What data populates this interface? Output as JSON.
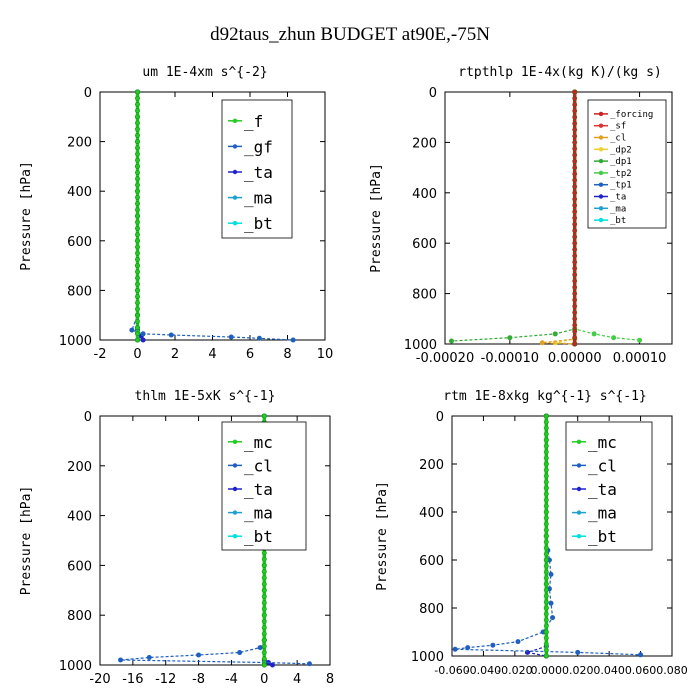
{
  "suptitle": "d92taus_zhun  BUDGET at90E,-75N",
  "chart_data": [
    {
      "type": "line",
      "title": "um  1E-4xm s^{-2}",
      "ylabel": "Pressure [hPa]",
      "xlim": [
        -2,
        10
      ],
      "ylim": [
        1000,
        0
      ],
      "xticks": [
        "-2",
        "0",
        "2",
        "4",
        "6",
        "8",
        "10"
      ],
      "yticks": [
        "0",
        "200",
        "400",
        "600",
        "800",
        "1000"
      ],
      "legend_position": "top-right",
      "series": [
        {
          "name": "_f",
          "color": "#22cc22",
          "points": [
            [
              0,
              0
            ],
            [
              0,
              100
            ],
            [
              0,
              200
            ],
            [
              0,
              300
            ],
            [
              0,
              400
            ],
            [
              0,
              500
            ],
            [
              0,
              600
            ],
            [
              0,
              700
            ],
            [
              0,
              800
            ],
            [
              0,
              900
            ],
            [
              0,
              950
            ],
            [
              0,
              970
            ],
            [
              0,
              1000
            ]
          ]
        },
        {
          "name": "_gf",
          "color": "#1f5fbf",
          "points": [
            [
              0,
              0
            ],
            [
              0,
              500
            ],
            [
              0,
              900
            ],
            [
              -0.3,
              960
            ],
            [
              0.3,
              975
            ],
            [
              1.8,
              980
            ],
            [
              5,
              988
            ],
            [
              6.5,
              993
            ],
            [
              8.3,
              1000
            ]
          ]
        },
        {
          "name": "_ta",
          "color": "#2222cc",
          "points": [
            [
              0,
              0
            ],
            [
              0,
              900
            ],
            [
              0,
              960
            ],
            [
              0.2,
              985
            ],
            [
              0.3,
              1000
            ]
          ]
        },
        {
          "name": "_ma",
          "color": "#1ea0d0",
          "points": [
            [
              0,
              0
            ],
            [
              0,
              1000
            ]
          ]
        },
        {
          "name": "_bt",
          "color": "#00e0e0",
          "points": [
            [
              0,
              0
            ],
            [
              0,
              1000
            ]
          ]
        }
      ]
    },
    {
      "type": "line",
      "title": "rtpthlp  1E-4x(kg K)/(kg s)",
      "ylabel": "Pressure [hPa]",
      "xlim": [
        -0.0002,
        0.00015
      ],
      "ylim": [
        1000,
        0
      ],
      "xticks": [
        "-0.00020",
        "-0.00010",
        "0.00000",
        "0.00010"
      ],
      "yticks": [
        "0",
        "200",
        "400",
        "600",
        "800",
        "1000"
      ],
      "legend_position": "top-right",
      "series": [
        {
          "name": "_forcing",
          "color": "#cc2222",
          "points": [
            [
              0,
              0
            ],
            [
              0,
              1000
            ]
          ]
        },
        {
          "name": "_sf",
          "color": "#dd3333",
          "points": [
            [
              0,
              0
            ],
            [
              0,
              1000
            ]
          ]
        },
        {
          "name": "_cl",
          "color": "#e0a020",
          "points": [
            [
              0,
              0
            ],
            [
              0,
              980
            ],
            [
              -5e-05,
              995
            ],
            [
              0,
              1000
            ]
          ]
        },
        {
          "name": "_dp2",
          "color": "#f0d030",
          "points": [
            [
              0,
              0
            ],
            [
              0,
              980
            ],
            [
              -3e-05,
              995
            ],
            [
              0,
              1000
            ]
          ]
        },
        {
          "name": "_dp1",
          "color": "#33aa33",
          "points": [
            [
              0,
              0
            ],
            [
              0,
              940
            ],
            [
              -3e-05,
              960
            ],
            [
              -0.0001,
              975
            ],
            [
              -0.00019,
              988
            ]
          ]
        },
        {
          "name": "_tp2",
          "color": "#44cc44",
          "points": [
            [
              0,
              0
            ],
            [
              0,
              940
            ],
            [
              3e-05,
              960
            ],
            [
              6e-05,
              975
            ],
            [
              0.0001,
              985
            ]
          ]
        },
        {
          "name": "_tp1",
          "color": "#1f5fbf",
          "points": [
            [
              0,
              0
            ],
            [
              0,
              1000
            ]
          ]
        },
        {
          "name": "_ta",
          "color": "#2222cc",
          "points": [
            [
              0,
              0
            ],
            [
              0,
              1000
            ]
          ]
        },
        {
          "name": "_ma",
          "color": "#1ea0d0",
          "points": [
            [
              0,
              0
            ],
            [
              0,
              1000
            ]
          ]
        },
        {
          "name": "_bt",
          "color": "#00e0e0",
          "points": [
            [
              0,
              0
            ],
            [
              0,
              1000
            ]
          ]
        }
      ]
    },
    {
      "type": "line",
      "title": "thlm  1E-5xK s^{-1}",
      "ylabel": "Pressure [hPa]",
      "xlim": [
        -20,
        8
      ],
      "ylim": [
        1000,
        0
      ],
      "xticks": [
        "-20",
        "-16",
        "-12",
        "-8",
        "-4",
        "0",
        "4",
        "8"
      ],
      "yticks": [
        "0",
        "200",
        "400",
        "600",
        "800",
        "1000"
      ],
      "legend_position": "top-right",
      "series": [
        {
          "name": "_mc",
          "color": "#22cc22",
          "points": [
            [
              0,
              0
            ],
            [
              0,
              100
            ],
            [
              0,
              200
            ],
            [
              0,
              300
            ],
            [
              0,
              400
            ],
            [
              0,
              500
            ],
            [
              0,
              600
            ],
            [
              0,
              700
            ],
            [
              0,
              800
            ],
            [
              0,
              900
            ],
            [
              0,
              1000
            ]
          ]
        },
        {
          "name": "_cl",
          "color": "#1f5fbf",
          "points": [
            [
              0,
              0
            ],
            [
              0,
              900
            ],
            [
              -0.5,
              930
            ],
            [
              -3,
              950
            ],
            [
              -8,
              960
            ],
            [
              -14,
              970
            ],
            [
              -17.5,
              980
            ],
            [
              0,
              990
            ],
            [
              5.5,
              995
            ]
          ]
        },
        {
          "name": "_ta",
          "color": "#2222cc",
          "points": [
            [
              0,
              0
            ],
            [
              0,
              980
            ],
            [
              0.5,
              990
            ],
            [
              1,
              1000
            ]
          ]
        },
        {
          "name": "_ma",
          "color": "#1ea0d0",
          "points": [
            [
              0,
              0
            ],
            [
              0,
              1000
            ]
          ]
        },
        {
          "name": "_bt",
          "color": "#00e0e0",
          "points": [
            [
              0,
              0
            ],
            [
              0,
              1000
            ]
          ]
        }
      ]
    },
    {
      "type": "line",
      "title": "rtm  1E-8xkg kg^{-1} s^{-1}",
      "ylabel": "Pressure [hPa]",
      "xlim": [
        -0.06,
        0.08
      ],
      "ylim": [
        1000,
        0
      ],
      "xticks": [
        "-0.060",
        "-0.040",
        "-0.020",
        "0.000",
        "0.020",
        "0.040",
        "0.060",
        "0.080"
      ],
      "yticks": [
        "0",
        "200",
        "400",
        "600",
        "800",
        "1000"
      ],
      "legend_position": "top-right",
      "series": [
        {
          "name": "_mc",
          "color": "#22cc22",
          "points": [
            [
              0,
              0
            ],
            [
              0,
              100
            ],
            [
              0,
              200
            ],
            [
              0,
              300
            ],
            [
              0,
              400
            ],
            [
              0,
              500
            ],
            [
              0,
              600
            ],
            [
              0,
              700
            ],
            [
              0,
              800
            ],
            [
              0,
              900
            ],
            [
              0,
              1000
            ]
          ]
        },
        {
          "name": "_cl",
          "color": "#1f5fbf",
          "points": [
            [
              0,
              0
            ],
            [
              0,
              500
            ],
            [
              0.001,
              560
            ],
            [
              0.002,
              600
            ],
            [
              0.003,
              660
            ],
            [
              0.002,
              720
            ],
            [
              0.003,
              780
            ],
            [
              0.004,
              840
            ],
            [
              -0.002,
              900
            ],
            [
              -0.018,
              940
            ],
            [
              -0.034,
              955
            ],
            [
              -0.05,
              965
            ],
            [
              -0.058,
              972
            ],
            [
              0.02,
              985
            ],
            [
              0.06,
              995
            ]
          ]
        },
        {
          "name": "_ta",
          "color": "#2222cc",
          "points": [
            [
              0,
              0
            ],
            [
              0,
              960
            ],
            [
              -0.012,
              985
            ],
            [
              0,
              1000
            ]
          ]
        },
        {
          "name": "_ma",
          "color": "#1ea0d0",
          "points": [
            [
              0,
              0
            ],
            [
              0,
              1000
            ]
          ]
        },
        {
          "name": "_bt",
          "color": "#00e0e0",
          "points": [
            [
              0,
              0
            ],
            [
              0,
              1000
            ]
          ]
        }
      ]
    }
  ]
}
